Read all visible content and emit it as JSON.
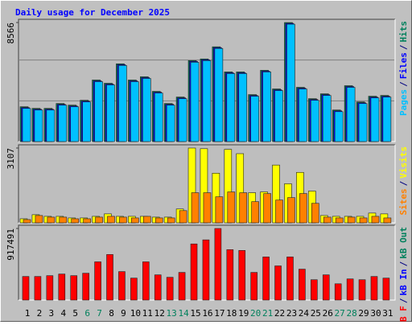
{
  "title": "Daily usage for December 2025",
  "categories": [
    "1",
    "2",
    "3",
    "4",
    "5",
    "6",
    "7",
    "8",
    "9",
    "10",
    "11",
    "12",
    "13",
    "14",
    "15",
    "16",
    "17",
    "18",
    "19",
    "20",
    "21",
    "22",
    "23",
    "24",
    "25",
    "26",
    "27",
    "28",
    "29",
    "30",
    "31"
  ],
  "weekend_indices": [
    5,
    6,
    12,
    13,
    19,
    20,
    26,
    27
  ],
  "weekend_color": "#00805C",
  "legend_separator": "/",
  "chart_data": [
    {
      "type": "bar",
      "ylim": [
        0,
        8566
      ],
      "yticks": [
        8566
      ],
      "series": [
        {
          "name": "Pages",
          "color": "#00C0FF",
          "values": [
            2387,
            2270,
            2270,
            2620,
            2503,
            2853,
            4310,
            4077,
            5476,
            4310,
            4543,
            3494,
            2620,
            3086,
            5709,
            5826,
            6700,
            4893,
            4893,
            3261,
            5010,
            3669,
            8446,
            3785,
            2969,
            3319,
            2153,
            3902,
            2736,
            3144,
            3202
          ]
        },
        {
          "name": "Files",
          "color": "#0000FF",
          "values": [
            2447,
            2330,
            2330,
            2680,
            2563,
            2913,
            4370,
            4137,
            5536,
            4370,
            4603,
            3554,
            2680,
            3146,
            5769,
            5886,
            6760,
            4953,
            4953,
            3321,
            5070,
            3729,
            8506,
            3845,
            3029,
            3379,
            2213,
            3962,
            2796,
            3204,
            3262
          ]
        },
        {
          "name": "Hits",
          "color": "#00805C",
          "values": [
            2507,
            2390,
            2390,
            2740,
            2623,
            2973,
            4430,
            4197,
            5596,
            4430,
            4663,
            3614,
            2740,
            3206,
            5829,
            5946,
            6820,
            5013,
            5013,
            3381,
            5130,
            3789,
            8566,
            3905,
            3089,
            3439,
            2273,
            4022,
            2856,
            3264,
            3322
          ]
        }
      ]
    },
    {
      "type": "bar",
      "ylim": [
        0,
        3107
      ],
      "yticks": [
        3107
      ],
      "series": [
        {
          "name": "Sites",
          "color": "#FF8000",
          "values": [
            135,
            304,
            237,
            237,
            169,
            169,
            237,
            270,
            237,
            203,
            270,
            203,
            203,
            507,
            1251,
            1251,
            1082,
            1284,
            1251,
            879,
            1217,
            946,
            1048,
            1217,
            811,
            237,
            203,
            237,
            203,
            270,
            203
          ]
        },
        {
          "name": "Visits",
          "color": "#FFFF00",
          "values": [
            169,
            338,
            270,
            270,
            203,
            203,
            270,
            372,
            270,
            270,
            270,
            237,
            237,
            575,
            3107,
            3080,
            2062,
            3050,
            2873,
            1251,
            1284,
            2400,
            1622,
            2096,
            1318,
            304,
            270,
            270,
            270,
            406,
            372
          ]
        }
      ]
    },
    {
      "type": "bar",
      "ylim": [
        0,
        917491
      ],
      "yticks": [
        917491
      ],
      "series": [
        {
          "name": "kB F",
          "color": "#FF0000",
          "values": [
            302354,
            302354,
            312780,
            333632,
            312780,
            344058,
            490022,
            583856,
            364910,
            281502,
            490022,
            323206,
            291928,
            354484,
            719394,
            771524,
            917491,
            646412,
            635986,
            354484,
            552578,
            437892,
            552578,
            396188,
            260650,
            323206,
            208520,
            271076,
            260650,
            302354,
            281502
          ]
        },
        {
          "name": "kB In",
          "color": "#0000FF"
        },
        {
          "name": "kB Out",
          "color": "#00805C"
        }
      ]
    }
  ]
}
